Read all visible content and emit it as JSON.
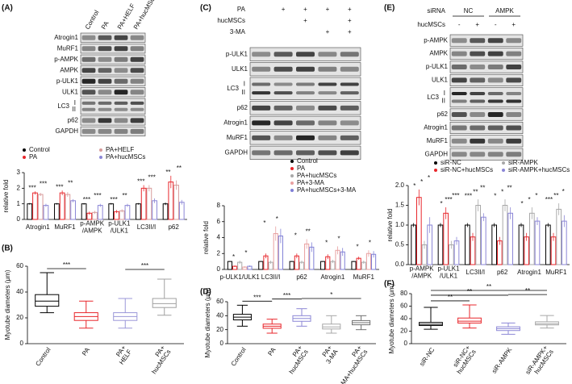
{
  "panel_labels": [
    "(A)",
    "(B)",
    "(C)",
    "(D)",
    "(E)",
    "(F)"
  ],
  "blots": [
    {
      "lanes": [
        "Control",
        "PA",
        "PA+HELF",
        "PA+hucMSCs"
      ],
      "rows": [
        "Atrogin1",
        "MuRF1",
        "p-AMPK",
        "AMPK",
        "p-ULK1",
        "ULK1",
        "LC3",
        "p62",
        "GAPDH"
      ],
      "lc3_forms": [
        "I",
        "II"
      ]
    },
    {
      "treatments": [
        {
          "name": "PA",
          "signs": [
            null,
            "+",
            "+",
            "+",
            "+"
          ]
        },
        {
          "name": "hucMSCs",
          "signs": [
            null,
            null,
            "+",
            null,
            "+"
          ]
        },
        {
          "name": "3-MA",
          "signs": [
            null,
            null,
            null,
            "+",
            "+"
          ]
        }
      ],
      "rows": [
        "p-ULK1",
        "ULK1",
        "LC3",
        "p62",
        "Atrogin1",
        "MuRF1",
        "GAPDH"
      ],
      "lc3_forms": [
        "I",
        "II"
      ]
    },
    {
      "group_label": "siRNA",
      "groups": [
        "NC",
        "AMPK"
      ],
      "treatments": [
        {
          "name": "hucMSCs",
          "signs": [
            "-",
            "+",
            "-",
            "+"
          ]
        }
      ],
      "rows": [
        "p-AMPK",
        "AMPK",
        "p-ULK1",
        "ULK1",
        "LC3",
        "p62",
        "Atrogin1",
        "MuRF1",
        "GAPDH"
      ],
      "lc3_forms": [
        "I",
        "II"
      ]
    }
  ],
  "chart_data": [
    {
      "type": "bar",
      "y_label": "relative fold",
      "legend_columns": 2,
      "ylim": [
        0,
        3
      ],
      "yticks": [
        0,
        1,
        2,
        3
      ],
      "categories": [
        "Atrogin1",
        "MuRF1",
        "p-AMPK\n/AMPK",
        "p-ULK1\n/ULK1",
        "LC3II/I",
        "p62"
      ],
      "series": [
        {
          "name": "Control",
          "color": "#000000",
          "values": [
            1,
            1,
            1,
            1,
            1,
            1
          ],
          "errors": [
            0.05,
            0.05,
            0.05,
            0.05,
            0.05,
            0.08
          ]
        },
        {
          "name": "PA",
          "color": "#e8262b",
          "values": [
            1.7,
            1.7,
            0.4,
            0.5,
            2.0,
            2.4
          ],
          "errors": [
            0.1,
            0.15,
            0.1,
            0.1,
            0.2,
            0.4
          ]
        },
        {
          "name": "PA+HELF",
          "color": "#d79a9a",
          "values": [
            1.6,
            1.6,
            0.45,
            0.55,
            2.0,
            2.2
          ],
          "errors": [
            0.1,
            0.15,
            0.1,
            0.1,
            0.2,
            0.3
          ]
        },
        {
          "name": "PA+hucMSCs",
          "color": "#8b86d6",
          "values": [
            0.9,
            1.2,
            0.9,
            0.9,
            1.2,
            1.1
          ],
          "errors": [
            0.1,
            0.1,
            0.1,
            0.1,
            0.15,
            0.15
          ]
        }
      ],
      "significance": [
        [
          "***",
          "***"
        ],
        [
          "***",
          "**"
        ],
        [
          "***",
          "***"
        ],
        [
          "***",
          "**"
        ],
        [
          "***",
          "***"
        ],
        [
          "**",
          "**"
        ]
      ]
    },
    {
      "type": "box",
      "y_label": "Myotube diameters (μm)",
      "ylim": [
        0,
        60
      ],
      "yticks": [
        0,
        20,
        40,
        60
      ],
      "categories": [
        "Control",
        "PA",
        "PA+\nHELF",
        "PA+\nhucMSCs"
      ],
      "colors": [
        "#000000",
        "#e8262b",
        "#9b97d8",
        "#a0a0a0"
      ],
      "boxes": [
        [
          24,
          29,
          33,
          38,
          55
        ],
        [
          12,
          18,
          21,
          24,
          33
        ],
        [
          12,
          18,
          21,
          24,
          35
        ],
        [
          22,
          28,
          31,
          35,
          50
        ]
      ],
      "annotations": [
        {
          "text": "***",
          "between": [
            "Control",
            "PA"
          ]
        },
        {
          "text": "***",
          "between": [
            "PA+\nHELF",
            "PA+\nhucMSCs"
          ]
        }
      ]
    },
    {
      "type": "bar",
      "y_label": "relative fold",
      "legend_columns": 1,
      "ylim": [
        0,
        8
      ],
      "yticks": [
        0,
        2,
        4,
        6,
        8
      ],
      "categories": [
        "p-ULK1/ULK1",
        "LC3II/I",
        "p62",
        "Atrogin1",
        "MuRF1"
      ],
      "series": [
        {
          "name": "Control",
          "color": "#000000",
          "values": [
            1,
            1,
            1,
            1,
            1
          ],
          "errors": [
            0.05,
            0.05,
            0.05,
            0.05,
            0.05
          ]
        },
        {
          "name": "PA",
          "color": "#e8262b",
          "values": [
            0.4,
            1.7,
            1.7,
            1.6,
            1.4
          ],
          "errors": [
            0.1,
            0.3,
            0.3,
            0.3,
            0.2
          ]
        },
        {
          "name": "PA+hucMSCs",
          "color": "#a8a8a8",
          "values": [
            0.9,
            0.9,
            0.9,
            1.0,
            0.9
          ],
          "errors": [
            0.2,
            0.2,
            0.2,
            0.2,
            0.2
          ]
        },
        {
          "name": "PA+3-MA",
          "color": "#e8a0a0",
          "values": [
            0.3,
            4.5,
            3.2,
            2.4,
            2.0
          ],
          "errors": [
            0.1,
            0.9,
            0.6,
            0.5,
            0.4
          ]
        },
        {
          "name": "PA+hucMSCs+3-MA",
          "color": "#7f7fd6",
          "values": [
            0.4,
            4.2,
            2.8,
            2.2,
            1.9
          ],
          "errors": [
            0.1,
            0.9,
            0.6,
            0.5,
            0.4
          ]
        }
      ],
      "significance": [
        [
          "*",
          "*"
        ],
        [
          "*",
          "*"
        ],
        [
          "*",
          "**"
        ],
        [
          "*",
          "*"
        ],
        [
          "*",
          "*"
        ]
      ]
    },
    {
      "type": "box",
      "y_label": "Myotube diameters (μm)",
      "ylim": [
        0,
        60
      ],
      "yticks": [
        0,
        20,
        40,
        60
      ],
      "categories": [
        "Control",
        "PA",
        "PA+\nhucMSCs",
        "PA+\n3-MA",
        "PA+\n3-MA+hucMSCs"
      ],
      "colors": [
        "#000000",
        "#e8262b",
        "#8c87d6",
        "#a8a8a8",
        "#707070"
      ],
      "boxes": [
        [
          25,
          34,
          38,
          42,
          55
        ],
        [
          15,
          22,
          25,
          28,
          35
        ],
        [
          25,
          32,
          36,
          40,
          50
        ],
        [
          15,
          21,
          24,
          28,
          40
        ],
        [
          20,
          27,
          30,
          33,
          40
        ]
      ],
      "annotations": [
        {
          "text": "***",
          "between": [
            "Control",
            "PA"
          ]
        },
        {
          "text": "***",
          "between": [
            "PA",
            "PA+\nhucMSCs"
          ]
        },
        {
          "text": "*",
          "between": [
            "PA+\nhucMSCs",
            "PA+\n3-MA+hucMSCs"
          ]
        }
      ]
    },
    {
      "type": "bar",
      "y_label": "relative fold",
      "legend_columns": 2,
      "ylim": [
        0,
        2
      ],
      "yticks": [
        {
          "value": 0,
          "label": "0.0"
        },
        {
          "value": 0.5,
          "label": "0.5"
        },
        {
          "value": 1,
          "label": "1.0"
        },
        {
          "value": 1.5,
          "label": "1.5"
        },
        {
          "value": 2,
          "label": "2.0"
        }
      ],
      "categories": [
        "p-AMPK\n/AMPK",
        "p-ULK1\n/ULK1",
        "LC3II/I",
        "p62",
        "Atrogin1",
        "MuRF1"
      ],
      "series": [
        {
          "name": "siR-NC",
          "color": "#000000",
          "values": [
            1,
            1,
            1,
            1,
            1,
            1
          ],
          "errors": [
            0.05,
            0.05,
            0.05,
            0.05,
            0.05,
            0.05
          ]
        },
        {
          "name": "siR-NC+hucMSCs",
          "color": "#e8262b",
          "values": [
            1.7,
            1.3,
            0.7,
            0.6,
            0.7,
            0.7
          ],
          "errors": [
            0.2,
            0.15,
            0.1,
            0.1,
            0.1,
            0.1
          ]
        },
        {
          "name": "siR-AMPK",
          "color": "#a8a8a8",
          "values": [
            0.5,
            0.5,
            1.5,
            1.5,
            1.3,
            1.4
          ],
          "errors": [
            0.1,
            0.1,
            0.15,
            0.15,
            0.15,
            0.15
          ]
        },
        {
          "name": "siR-AMPK+hucMSCs",
          "color": "#8b86d6",
          "values": [
            1.0,
            0.6,
            1.2,
            1.3,
            1.1,
            1.1
          ],
          "errors": [
            0.2,
            0.1,
            0.1,
            0.15,
            0.1,
            0.15
          ]
        }
      ],
      "significance": [
        [
          "*",
          "*",
          "*"
        ],
        [
          "*",
          "***",
          "***"
        ],
        [
          "***",
          "**",
          "**"
        ],
        [
          "*",
          "*",
          "**"
        ],
        [
          "*",
          "*",
          "*"
        ],
        [
          "***",
          "**",
          "*"
        ]
      ]
    },
    {
      "type": "box",
      "y_label": "Myotube diameters (μm)",
      "ylim": [
        0,
        80
      ],
      "yticks": [
        0,
        20,
        40,
        60,
        80
      ],
      "categories": [
        "siR-NC",
        "siR-NC+\nhucMSCs",
        "siR-AMPK",
        "siR-AMPK+\nhucMSCs"
      ],
      "colors": [
        "#000000",
        "#e8262b",
        "#8c87d6",
        "#a8a8a8"
      ],
      "boxes": [
        [
          23,
          29,
          31,
          34,
          58
        ],
        [
          25,
          33,
          36,
          41,
          62
        ],
        [
          15,
          21,
          24,
          27,
          33
        ],
        [
          25,
          30,
          32,
          35,
          45
        ]
      ],
      "annotations": [
        {
          "text": "**",
          "between": [
            "siR-NC",
            "siR-NC+\nhucMSCs"
          ]
        },
        {
          "text": "**",
          "between": [
            "siR-NC",
            "siR-AMPK"
          ]
        },
        {
          "text": "**",
          "between": [
            "siR-NC",
            "siR-AMPK+\nhucMSCs"
          ]
        },
        {
          "text": "**",
          "between": [
            "siR-AMPK",
            "siR-AMPK+\nhucMSCs"
          ]
        }
      ]
    }
  ]
}
